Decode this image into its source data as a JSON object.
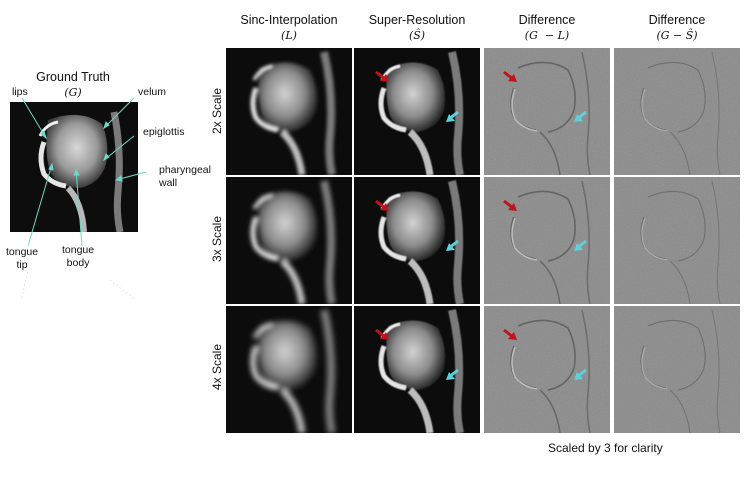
{
  "ground_truth": {
    "title": "Ground Truth",
    "symbol": "(G)",
    "labels": {
      "lips": "lips",
      "velum": "velum",
      "epiglottis": "epiglottis",
      "pharyngeal_wall": "pharyngeal\nwall",
      "tongue_tip": "tongue\ntip",
      "tongue_body": "tongue\nbody"
    }
  },
  "columns": [
    {
      "title": "Sinc-Interpolation",
      "symbol": "(L)"
    },
    {
      "title": "Super-Resolution",
      "symbol": "(Ŝ)"
    },
    {
      "title": "Difference",
      "symbol": "(G  − L)"
    },
    {
      "title": "Difference",
      "symbol": "(G − Ŝ)"
    }
  ],
  "rows": [
    {
      "label": "2x Scale"
    },
    {
      "label": "3x Scale"
    },
    {
      "label": "4x Scale"
    }
  ],
  "caption": "Scaled by 3 for clarity",
  "colors": {
    "red_arrow": "#c0141c",
    "cyan_arrow": "#5fd0d8",
    "annotation_line": "#6fd6c8",
    "image_dark": "#0c0c0c",
    "diff_gray": "#8a8a8a"
  }
}
